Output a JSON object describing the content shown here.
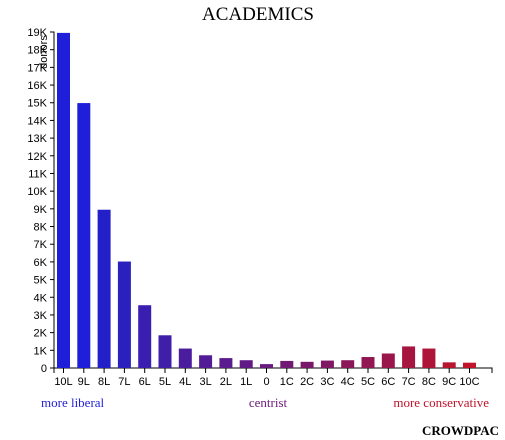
{
  "chart_data": {
    "type": "bar",
    "title": "ACADEMICS",
    "ylabel": "donors",
    "xlabel": "",
    "ylim": [
      0,
      19000
    ],
    "y_ticks": [
      0,
      1000,
      2000,
      3000,
      4000,
      5000,
      6000,
      7000,
      8000,
      9000,
      10000,
      11000,
      12000,
      13000,
      14000,
      15000,
      16000,
      17000,
      18000,
      19000
    ],
    "y_tick_labels": [
      "0",
      "1K",
      "2K",
      "3K",
      "4K",
      "5K",
      "6K",
      "7K",
      "8K",
      "9K",
      "10K",
      "11K",
      "12K",
      "13K",
      "14K",
      "15K",
      "16K",
      "17K",
      "18K",
      "19K"
    ],
    "categories": [
      "10L",
      "9L",
      "8L",
      "7L",
      "6L",
      "5L",
      "4L",
      "3L",
      "2L",
      "1L",
      "0",
      "1C",
      "2C",
      "3C",
      "4C",
      "5C",
      "6C",
      "7C",
      "8C",
      "9C",
      "10C"
    ],
    "values": [
      18950,
      14980,
      8950,
      6020,
      3550,
      1850,
      1100,
      720,
      560,
      440,
      220,
      400,
      350,
      420,
      440,
      620,
      820,
      1220,
      1100,
      320,
      300
    ],
    "colors": [
      "#1f1fd9",
      "#1f1fd9",
      "#2420c9",
      "#2a20bd",
      "#3a1eb0",
      "#3f1ea8",
      "#4a1d9f",
      "#521c96",
      "#591b8d",
      "#611a85",
      "#691a7d",
      "#711974",
      "#79186b",
      "#811863",
      "#89175a",
      "#921652",
      "#9a1549",
      "#a51540",
      "#ad1438",
      "#b71430",
      "#c1132a"
    ],
    "grid": false
  },
  "scale_labels": {
    "liberal": "more liberal",
    "centrist": "centrist",
    "conservative": "more conservative"
  },
  "scale_colors": {
    "liberal": "#1f1fd9",
    "centrist": "#6a1a7a",
    "conservative": "#c1132a"
  },
  "brand": "CROWDPAC"
}
